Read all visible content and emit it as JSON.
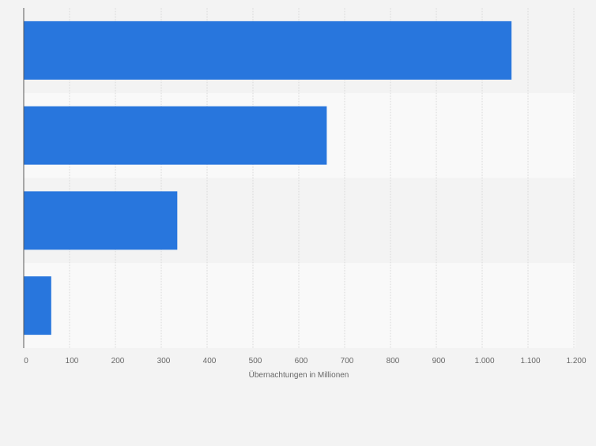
{
  "chart_data": {
    "type": "bar",
    "orientation": "horizontal",
    "categories": [
      "",
      "",
      "",
      ""
    ],
    "values": [
      1064,
      661,
      335,
      60
    ],
    "xlabel": "Übernachtungen in Millionen",
    "ylabel": "",
    "xlim": [
      0,
      1200
    ],
    "ticks": [
      {
        "value": 0,
        "label": "0"
      },
      {
        "value": 100,
        "label": "100"
      },
      {
        "value": 200,
        "label": "200"
      },
      {
        "value": 300,
        "label": "300"
      },
      {
        "value": 400,
        "label": "400"
      },
      {
        "value": 500,
        "label": "500"
      },
      {
        "value": 600,
        "label": "600"
      },
      {
        "value": 700,
        "label": "700"
      },
      {
        "value": 800,
        "label": "800"
      },
      {
        "value": 900,
        "label": "900"
      },
      {
        "value": 1000,
        "label": "1.000"
      },
      {
        "value": 1100,
        "label": "1.100"
      },
      {
        "value": 1200,
        "label": "1.200"
      }
    ],
    "grid": true,
    "legend": "none",
    "colors": {
      "bar": "#2876dd",
      "background": "#f3f3f3",
      "band_alt": "#f9f9f9",
      "grid": "#d9d9d9",
      "axis": "#5a5a5a",
      "text": "#666666"
    }
  }
}
